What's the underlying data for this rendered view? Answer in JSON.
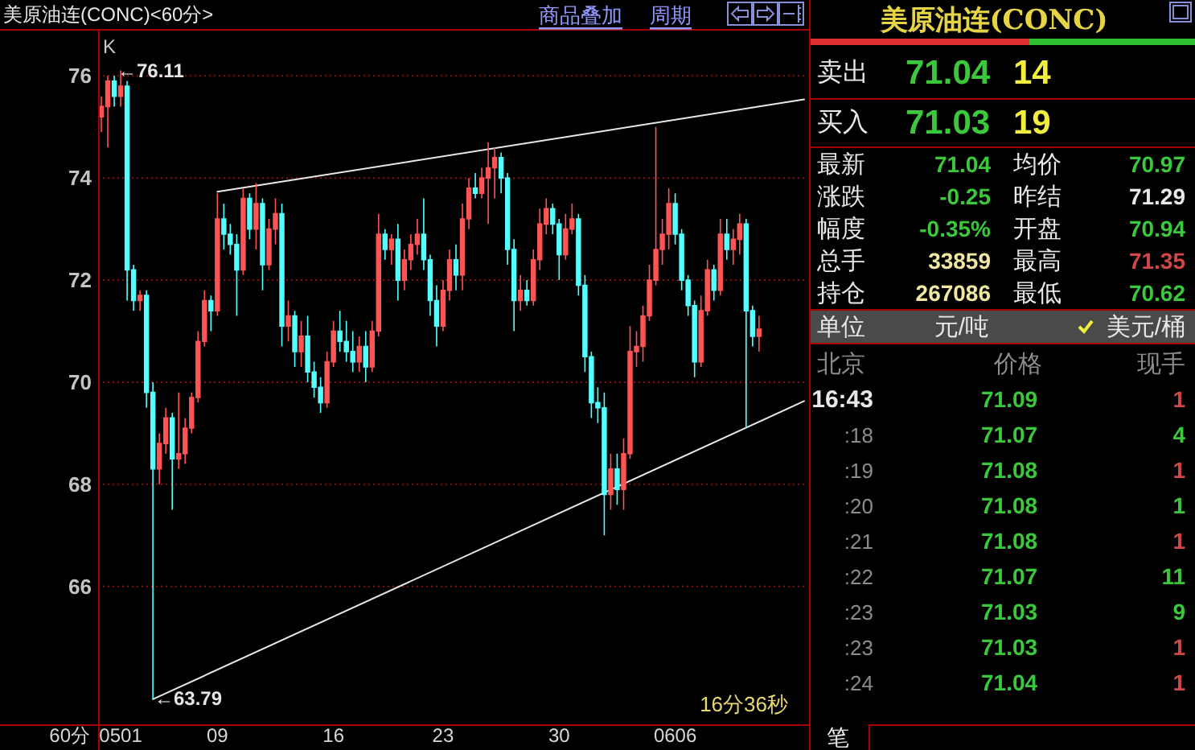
{
  "chart_data": [
    {
      "type": "candlestick",
      "title": "美原油连(CONC)<60分>",
      "xlabel": "60分",
      "categories": [
        null,
        null,
        null,
        "0501",
        null,
        null,
        null,
        null,
        null,
        null,
        null,
        null,
        null,
        null,
        null,
        null,
        null,
        null,
        "09",
        null,
        null,
        null,
        null,
        null,
        null,
        null,
        null,
        null,
        null,
        null,
        null,
        null,
        null,
        null,
        null,
        null,
        "16",
        null,
        null,
        null,
        null,
        null,
        null,
        null,
        null,
        null,
        null,
        null,
        null,
        null,
        null,
        null,
        null,
        "23",
        null,
        null,
        null,
        null,
        null,
        null,
        null,
        null,
        null,
        null,
        null,
        null,
        null,
        null,
        null,
        null,
        null,
        "30",
        null,
        null,
        null,
        null,
        null,
        null,
        null,
        null,
        null,
        null,
        null,
        null,
        null,
        null,
        null,
        null,
        null,
        "0606",
        null,
        null,
        null,
        null,
        null,
        null,
        null,
        null,
        null,
        null,
        null,
        null,
        null,
        null,
        null,
        null,
        null,
        null,
        null,
        null
      ],
      "ohlc": [
        [
          75.2,
          75.6,
          74.9,
          75.4
        ],
        [
          75.4,
          76.0,
          74.6,
          75.9
        ],
        [
          75.9,
          76.0,
          75.4,
          75.6
        ],
        [
          75.6,
          76.11,
          75.4,
          75.8
        ],
        [
          75.8,
          75.9,
          71.6,
          72.2
        ],
        [
          72.2,
          72.3,
          71.4,
          71.6
        ],
        [
          71.6,
          71.8,
          71.4,
          71.7
        ],
        [
          71.7,
          71.8,
          69.5,
          69.8
        ],
        [
          69.8,
          70.0,
          63.79,
          68.3
        ],
        [
          68.3,
          69.0,
          68.0,
          68.8
        ],
        [
          68.8,
          69.5,
          68.6,
          69.3
        ],
        [
          69.3,
          69.4,
          67.5,
          68.5
        ],
        [
          68.5,
          69.8,
          68.3,
          68.6
        ],
        [
          68.6,
          69.3,
          68.4,
          69.1
        ],
        [
          69.1,
          69.8,
          69.0,
          69.7
        ],
        [
          69.7,
          71.0,
          69.6,
          70.8
        ],
        [
          70.8,
          71.8,
          70.7,
          71.6
        ],
        [
          71.6,
          71.7,
          71.0,
          71.4
        ],
        [
          71.4,
          73.7,
          71.3,
          73.2
        ],
        [
          73.2,
          73.5,
          72.6,
          72.9
        ],
        [
          72.9,
          73.1,
          72.5,
          72.7
        ],
        [
          72.7,
          72.9,
          71.3,
          72.2
        ],
        [
          72.2,
          73.8,
          72.1,
          73.6
        ],
        [
          73.6,
          73.7,
          72.8,
          73.0
        ],
        [
          73.0,
          73.9,
          72.6,
          73.5
        ],
        [
          73.5,
          73.6,
          71.8,
          72.3
        ],
        [
          72.3,
          73.2,
          72.2,
          73.0
        ],
        [
          73.0,
          73.6,
          72.7,
          73.3
        ],
        [
          73.3,
          73.5,
          70.7,
          71.1
        ],
        [
          71.1,
          71.6,
          70.8,
          71.3
        ],
        [
          71.3,
          71.4,
          70.3,
          70.6
        ],
        [
          70.6,
          71.2,
          70.3,
          70.9
        ],
        [
          70.9,
          71.3,
          70.0,
          70.2
        ],
        [
          70.2,
          70.4,
          69.7,
          69.9
        ],
        [
          69.9,
          70.1,
          69.4,
          69.6
        ],
        [
          69.6,
          70.6,
          69.5,
          70.4
        ],
        [
          70.4,
          71.2,
          70.3,
          71.0
        ],
        [
          71.0,
          71.4,
          70.6,
          70.8
        ],
        [
          70.8,
          71.2,
          70.4,
          70.6
        ],
        [
          70.6,
          71.0,
          70.2,
          70.4
        ],
        [
          70.4,
          70.9,
          70.2,
          70.7
        ],
        [
          70.7,
          71.0,
          70.0,
          70.3
        ],
        [
          70.3,
          71.2,
          70.2,
          71.0
        ],
        [
          71.0,
          73.3,
          70.9,
          72.9
        ],
        [
          72.9,
          73.0,
          72.4,
          72.6
        ],
        [
          72.6,
          72.9,
          72.3,
          72.8
        ],
        [
          72.8,
          73.1,
          71.6,
          72.0
        ],
        [
          72.0,
          72.6,
          71.8,
          72.4
        ],
        [
          72.4,
          72.9,
          72.2,
          72.7
        ],
        [
          72.7,
          73.2,
          72.5,
          72.9
        ],
        [
          72.9,
          73.6,
          72.2,
          72.4
        ],
        [
          72.4,
          72.5,
          71.3,
          71.6
        ],
        [
          71.6,
          71.9,
          70.7,
          71.1
        ],
        [
          71.1,
          72.0,
          71.0,
          71.8
        ],
        [
          71.8,
          72.6,
          71.6,
          72.4
        ],
        [
          72.4,
          72.7,
          71.8,
          72.1
        ],
        [
          72.1,
          73.5,
          71.8,
          73.2
        ],
        [
          73.2,
          74.0,
          73.0,
          73.8
        ],
        [
          73.8,
          74.1,
          73.6,
          73.7
        ],
        [
          73.7,
          74.2,
          73.6,
          74.0
        ],
        [
          74.0,
          74.7,
          73.1,
          74.2
        ],
        [
          74.2,
          74.6,
          73.6,
          74.4
        ],
        [
          74.4,
          74.5,
          73.7,
          74.0
        ],
        [
          74.0,
          74.1,
          72.3,
          72.6
        ],
        [
          72.6,
          72.8,
          71.0,
          71.6
        ],
        [
          71.6,
          72.1,
          71.4,
          71.8
        ],
        [
          71.8,
          72.0,
          71.5,
          71.6
        ],
        [
          71.6,
          72.6,
          71.5,
          72.4
        ],
        [
          72.4,
          73.4,
          72.2,
          73.1
        ],
        [
          73.1,
          73.6,
          72.9,
          73.4
        ],
        [
          73.4,
          73.5,
          72.9,
          73.1
        ],
        [
          73.1,
          73.2,
          72.0,
          72.5
        ],
        [
          72.5,
          73.3,
          72.4,
          73.0
        ],
        [
          73.0,
          73.5,
          72.9,
          73.2
        ],
        [
          73.2,
          73.3,
          71.7,
          71.9
        ],
        [
          71.9,
          72.1,
          70.2,
          70.5
        ],
        [
          70.5,
          70.6,
          69.3,
          69.6
        ],
        [
          69.6,
          69.9,
          69.2,
          69.5
        ],
        [
          69.5,
          69.8,
          67.0,
          67.8
        ],
        [
          67.8,
          68.6,
          67.5,
          68.3
        ],
        [
          68.3,
          68.6,
          67.6,
          67.9
        ],
        [
          67.9,
          68.9,
          67.5,
          68.6
        ],
        [
          68.6,
          71.1,
          68.5,
          70.6
        ],
        [
          70.6,
          71.0,
          70.3,
          70.7
        ],
        [
          70.7,
          71.5,
          70.4,
          71.3
        ],
        [
          71.3,
          72.3,
          71.2,
          72.0
        ],
        [
          72.0,
          75.0,
          71.9,
          72.6
        ],
        [
          72.6,
          73.2,
          72.3,
          72.9
        ],
        [
          72.9,
          73.8,
          72.6,
          73.5
        ],
        [
          73.5,
          73.7,
          72.7,
          72.9
        ],
        [
          72.9,
          73.0,
          71.8,
          72.0
        ],
        [
          72.0,
          72.1,
          71.3,
          71.5
        ],
        [
          71.5,
          71.6,
          70.1,
          70.4
        ],
        [
          70.4,
          71.7,
          70.3,
          71.4
        ],
        [
          71.4,
          72.4,
          71.3,
          72.2
        ],
        [
          72.2,
          72.3,
          71.6,
          71.8
        ],
        [
          71.8,
          73.2,
          71.7,
          72.9
        ],
        [
          72.9,
          73.2,
          72.4,
          72.6
        ],
        [
          72.6,
          73.0,
          72.3,
          72.8
        ],
        [
          72.8,
          73.3,
          72.5,
          73.1
        ],
        [
          73.1,
          73.2,
          69.1,
          71.4
        ],
        [
          71.4,
          71.5,
          70.7,
          70.9
        ],
        [
          70.9,
          71.3,
          70.6,
          71.04
        ],
        null,
        null,
        null,
        null,
        null,
        null,
        null
      ],
      "colors": [
        "#ff5454",
        "#ff5454",
        "#54ffff",
        "#ff5454",
        "#54ffff",
        "#54ffff",
        "#ff5454",
        "#54ffff",
        "#54ffff",
        "#ff5454",
        "#ff5454",
        "#54ffff",
        "#ff5454",
        "#ff5454",
        "#ff5454",
        "#ff5454",
        "#ff5454",
        "#54ffff",
        "#ff5454",
        "#54ffff",
        "#54ffff",
        "#54ffff",
        "#ff5454",
        "#54ffff",
        "#ff5454",
        "#54ffff",
        "#ff5454",
        "#ff5454",
        "#54ffff",
        "#ff5454",
        "#54ffff",
        "#ff5454",
        "#54ffff",
        "#54ffff",
        "#54ffff",
        "#ff5454",
        "#ff5454",
        "#54ffff",
        "#54ffff",
        "#54ffff",
        "#ff5454",
        "#54ffff",
        "#ff5454",
        "#ff5454",
        "#54ffff",
        "#ff5454",
        "#54ffff",
        "#ff5454",
        "#ff5454",
        "#ff5454",
        "#54ffff",
        "#54ffff",
        "#54ffff",
        "#ff5454",
        "#ff5454",
        "#54ffff",
        "#ff5454",
        "#ff5454",
        "#54ffff",
        "#ff5454",
        "#ff5454",
        "#ff5454",
        "#54ffff",
        "#54ffff",
        "#54ffff",
        "#ff5454",
        "#54ffff",
        "#ff5454",
        "#ff5454",
        "#ff5454",
        "#54ffff",
        "#54ffff",
        "#ff5454",
        "#ff5454",
        "#54ffff",
        "#54ffff",
        "#54ffff",
        "#54ffff",
        "#54ffff",
        "#ff5454",
        "#54ffff",
        "#ff5454",
        "#ff5454",
        "#ff5454",
        "#ff5454",
        "#ff5454",
        "#ff5454",
        "#ff5454",
        "#ff5454",
        "#54ffff",
        "#54ffff",
        "#54ffff",
        "#54ffff",
        "#ff5454",
        "#ff5454",
        "#54ffff",
        "#ff5454",
        "#54ffff",
        "#ff5454",
        "#ff5454",
        "#54ffff",
        "#54ffff",
        "#ff5454",
        null,
        null,
        null,
        null,
        null,
        null,
        null
      ],
      "ylim": [
        63.3,
        76.92
      ],
      "yticks": [
        66,
        68,
        70,
        72,
        74,
        76
      ],
      "grid": "y",
      "series": [
        {
          "type": "line",
          "color": "#e8e8e8",
          "values": [
            null,
            null,
            null,
            null,
            null,
            null,
            null,
            null,
            null,
            null,
            null,
            null,
            null,
            null,
            null,
            null,
            null,
            null,
            73.73,
            null,
            null,
            null,
            null,
            null,
            null,
            null,
            null,
            null,
            null,
            null,
            null,
            null,
            null,
            null,
            null,
            null,
            null,
            null,
            null,
            null,
            null,
            null,
            null,
            null,
            null,
            null,
            null,
            null,
            null,
            null,
            null,
            null,
            null,
            null,
            null,
            null,
            null,
            null,
            null,
            null,
            null,
            null,
            null,
            null,
            null,
            null,
            null,
            null,
            null,
            null,
            null,
            null,
            null,
            null,
            null,
            null,
            null,
            null,
            null,
            null,
            null,
            null,
            null,
            null,
            null,
            null,
            null,
            null,
            null,
            null,
            null,
            null,
            null,
            null,
            null,
            null,
            null,
            null,
            null,
            null,
            null,
            null,
            null,
            null,
            null,
            null,
            null,
            null,
            null,
            75.54
          ]
        },
        {
          "type": "line",
          "color": "#e8e8e8",
          "values": [
            null,
            null,
            null,
            null,
            null,
            null,
            null,
            null,
            63.79,
            null,
            null,
            null,
            null,
            null,
            null,
            null,
            null,
            null,
            null,
            null,
            null,
            null,
            null,
            null,
            null,
            null,
            null,
            null,
            null,
            null,
            null,
            null,
            null,
            null,
            null,
            null,
            null,
            null,
            null,
            null,
            null,
            null,
            null,
            null,
            null,
            null,
            null,
            null,
            null,
            null,
            null,
            null,
            null,
            null,
            null,
            null,
            null,
            null,
            null,
            null,
            null,
            null,
            null,
            null,
            null,
            null,
            null,
            null,
            null,
            null,
            null,
            null,
            null,
            null,
            null,
            null,
            null,
            null,
            null,
            null,
            null,
            null,
            null,
            null,
            null,
            null,
            null,
            null,
            null,
            null,
            null,
            null,
            null,
            null,
            null,
            null,
            null,
            null,
            null,
            null,
            null,
            null,
            null,
            null,
            null,
            null,
            null,
            null,
            null,
            69.63
          ]
        }
      ],
      "annotations": [
        "←76.11",
        "←63.79",
        "K",
        "16分36秒",
        "商品叠加",
        "周期"
      ]
    },
    {
      "type": "other",
      "title": "美原油连(CONC)",
      "annotations": [
        "卖出",
        "71.04",
        "14",
        "买入",
        "71.03",
        "19",
        "最新",
        "71.04",
        "均价",
        "70.97",
        "涨跌",
        "-0.25",
        "昨结",
        "71.29",
        "幅度",
        "-0.35%",
        "开盘",
        "70.94",
        "总手",
        "33859",
        "最高",
        "71.35",
        "持仓",
        "267086",
        "最低",
        "70.62",
        "单位",
        "元/吨",
        "美元/桶",
        "北京",
        "价格",
        "现手",
        "16:43",
        "71.09",
        "1",
        ":18",
        "71.07",
        "4",
        ":19",
        "71.08",
        "1",
        ":20",
        "71.08",
        "1",
        ":21",
        "71.08",
        "1",
        ":22",
        "71.07",
        "11",
        ":23",
        "71.03",
        "9",
        ":23",
        "71.03",
        "1",
        ":24",
        "71.04",
        "1",
        "笔"
      ]
    }
  ]
}
